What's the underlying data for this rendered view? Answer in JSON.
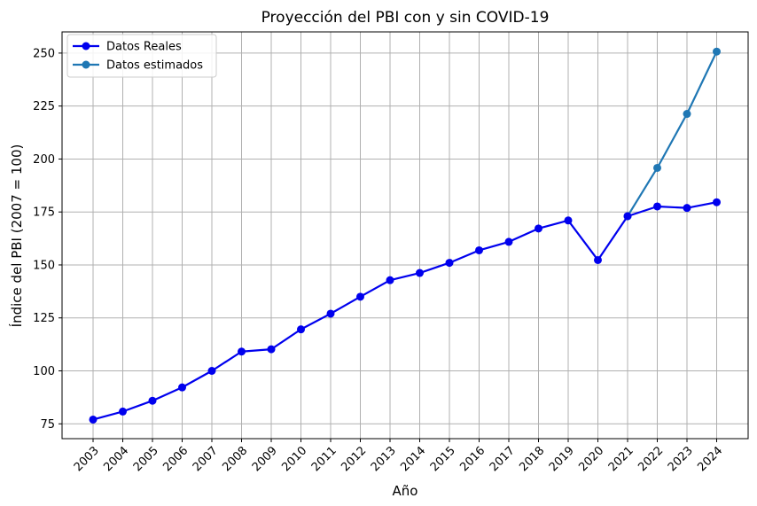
{
  "chart_data": {
    "type": "line",
    "title": "Proyección del PBI con y sin COVID-19",
    "xlabel": "Año",
    "ylabel": "Índice del PBI (2007 = 100)",
    "x": [
      "2003",
      "2004",
      "2005",
      "2006",
      "2007",
      "2008",
      "2009",
      "2010",
      "2011",
      "2012",
      "2013",
      "2014",
      "2015",
      "2016",
      "2017",
      "2018",
      "2019",
      "2020",
      "2021",
      "2022",
      "2023",
      "2024"
    ],
    "ylim": [
      68,
      260
    ],
    "yticks": [
      75,
      100,
      125,
      150,
      175,
      200,
      225,
      250
    ],
    "grid": true,
    "legend_position": "top-left",
    "series": [
      {
        "name": "Datos Reales",
        "color": "#0000ee",
        "x": [
          "2003",
          "2004",
          "2005",
          "2006",
          "2007",
          "2008",
          "2009",
          "2010",
          "2011",
          "2012",
          "2013",
          "2014",
          "2015",
          "2016",
          "2017",
          "2018",
          "2019",
          "2020",
          "2021",
          "2022",
          "2023",
          "2024"
        ],
        "values": [
          77,
          80.8,
          85.9,
          92.2,
          100,
          109.1,
          110.2,
          119.6,
          127.0,
          135.0,
          142.8,
          146.2,
          151.0,
          156.9,
          160.9,
          167.2,
          171.0,
          152.3,
          173.0,
          177.6,
          176.9,
          179.6
        ]
      },
      {
        "name": "Datos estimados",
        "color": "#1f77b4",
        "x": [
          "2021",
          "2022",
          "2023",
          "2024"
        ],
        "values": [
          173.0,
          195.8,
          221.3,
          250.7
        ]
      }
    ]
  }
}
